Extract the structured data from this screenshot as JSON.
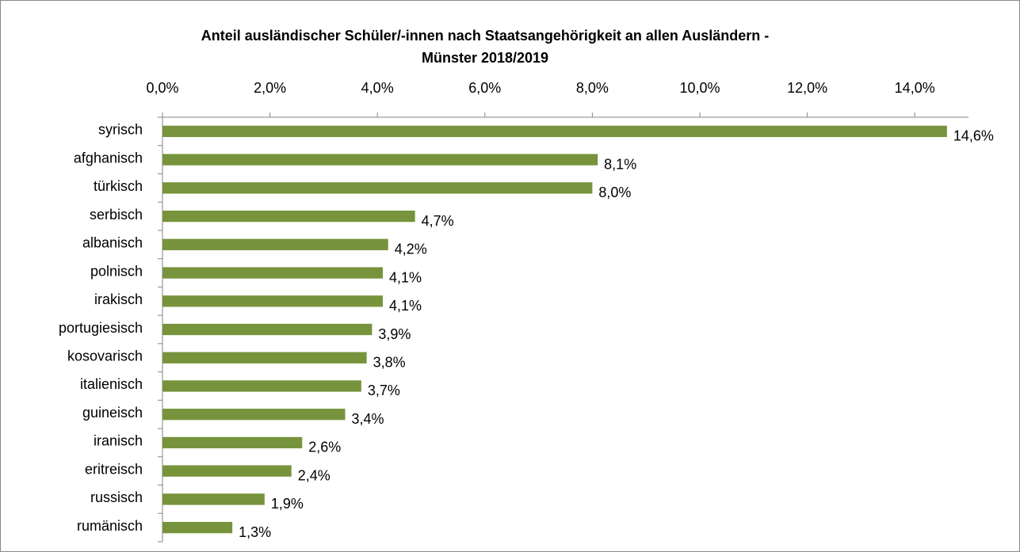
{
  "chart_data": {
    "type": "bar",
    "orientation": "horizontal",
    "title": [
      "Anteil ausländischer Schüler/-innen nach Staatsangehörigkeit an allen Ausländern -",
      "Münster 2018/2019"
    ],
    "categories": [
      "syrisch",
      "afghanisch",
      "türkisch",
      "serbisch",
      "albanisch",
      "polnisch",
      "irakisch",
      "portugiesisch",
      "kosovarisch",
      "italienisch",
      "guineisch",
      "iranisch",
      "eritreisch",
      "russisch",
      "rumänisch"
    ],
    "values": [
      14.6,
      8.1,
      8.0,
      4.7,
      4.2,
      4.1,
      4.1,
      3.9,
      3.8,
      3.7,
      3.4,
      2.6,
      2.4,
      1.9,
      1.3
    ],
    "value_labels": [
      "14,6%",
      "8,1%",
      "8,0%",
      "4,7%",
      "4,2%",
      "4,1%",
      "4,1%",
      "3,9%",
      "3,8%",
      "3,7%",
      "3,4%",
      "2,6%",
      "2,4%",
      "1,9%",
      "1,3%"
    ],
    "color": "#77933c",
    "xlim": [
      0,
      15
    ],
    "xticks": [
      {
        "value": 0,
        "label": "0,0%"
      },
      {
        "value": 2,
        "label": "2,0%"
      },
      {
        "value": 4,
        "label": "4,0%"
      },
      {
        "value": 6,
        "label": "6,0%"
      },
      {
        "value": 8,
        "label": "8,0%"
      },
      {
        "value": 10,
        "label": "10,0%"
      },
      {
        "value": 12,
        "label": "12,0%"
      },
      {
        "value": 14,
        "label": "14,0%"
      }
    ],
    "grid": false
  }
}
